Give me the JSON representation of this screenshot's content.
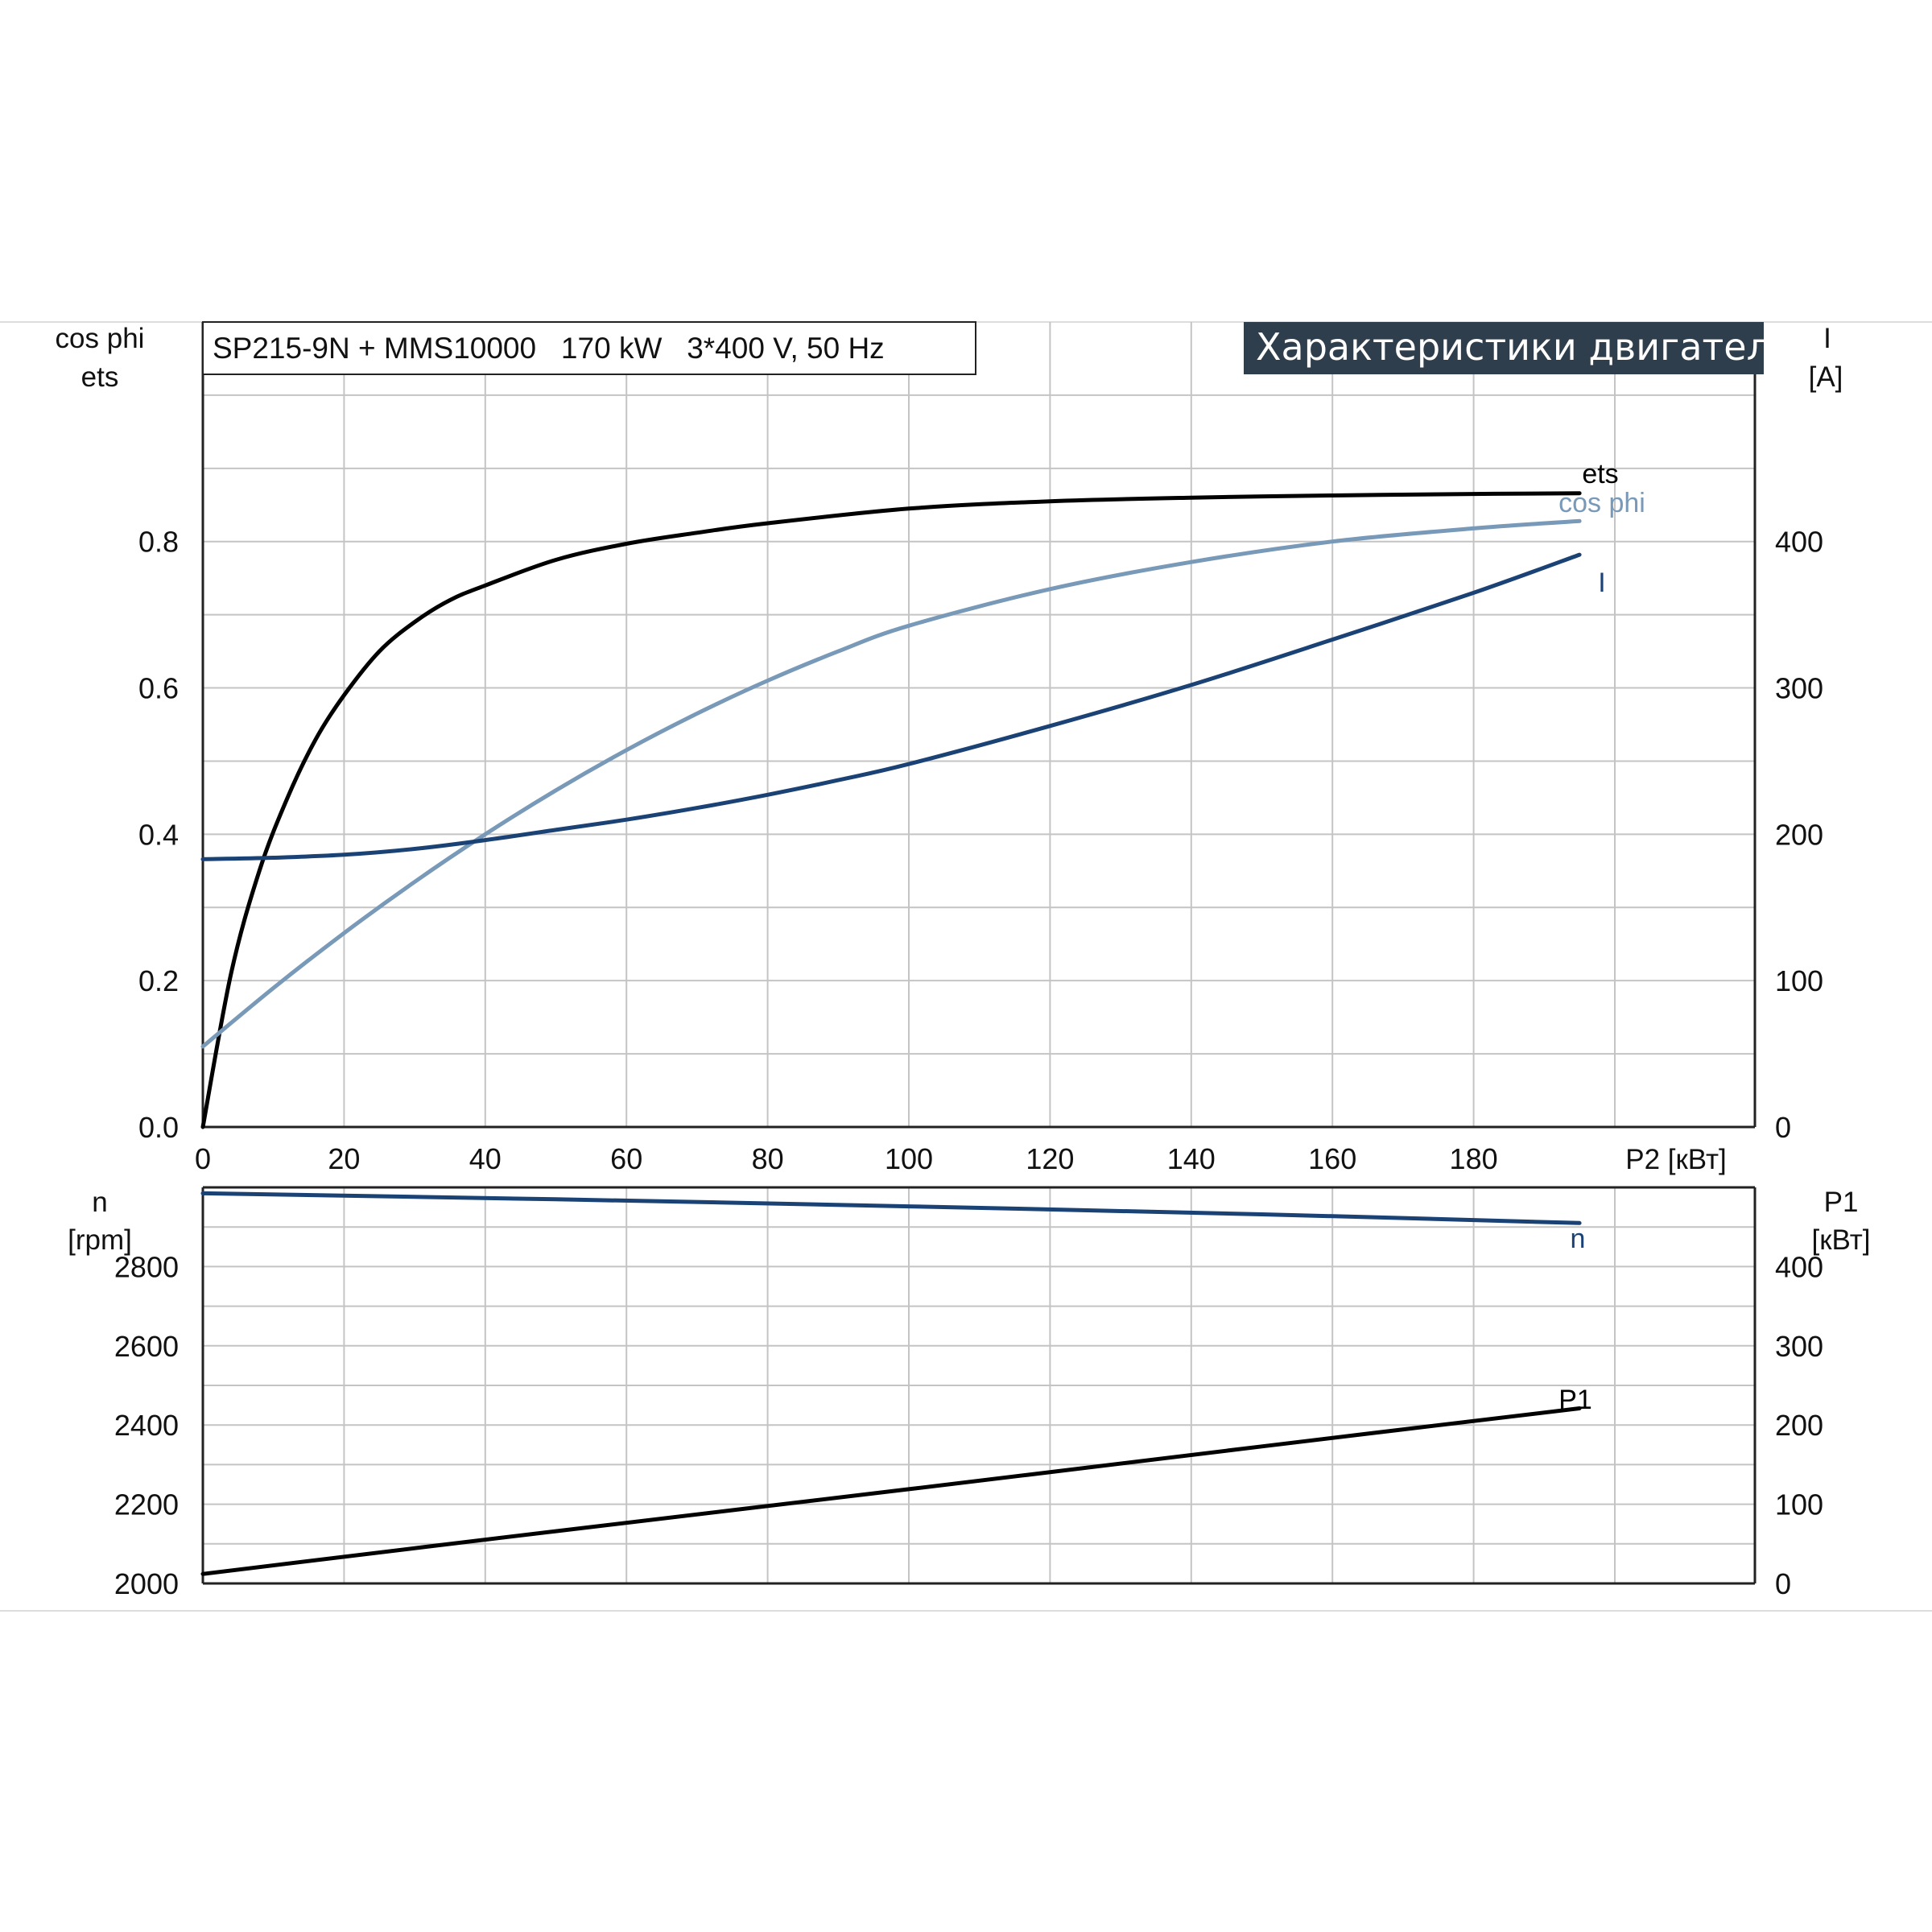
{
  "colors": {
    "grid": "#c4c4c4",
    "frame": "#222222",
    "title_bg": "#2f3e4c",
    "ets": "#000000",
    "cos_phi": "#7899b8",
    "I": "#1b4275",
    "n": "#1b4275",
    "P1": "#000000"
  },
  "header": {
    "model": "SP215-9N + MMS10000   170 kW   3*400 V, 50 Hz",
    "title": "Характеристики двигателя"
  },
  "chart_data": [
    {
      "type": "line",
      "panel": "upper",
      "x_label": "P2 [кВт]",
      "x_ticks": [
        "0",
        "20",
        "40",
        "60",
        "80",
        "100",
        "120",
        "140",
        "160",
        "180"
      ],
      "xlim": [
        0,
        220
      ],
      "left_axis": {
        "labels": [
          "cos phi",
          "ets"
        ],
        "ticks": [
          "0.0",
          "0.2",
          "0.4",
          "0.6",
          "0.8"
        ],
        "ylim": [
          0,
          1.1
        ]
      },
      "right_axis": {
        "labels": [
          "I",
          "[A]"
        ],
        "ticks": [
          "0",
          "100",
          "200",
          "300",
          "400"
        ],
        "ylim": [
          0,
          550
        ]
      },
      "grid": true,
      "series": [
        {
          "name": "ets",
          "axis": "left",
          "color_key": "ets",
          "x": [
            0,
            4,
            8,
            12,
            16,
            20,
            25,
            30,
            35,
            40,
            50,
            60,
            70,
            80,
            100,
            120,
            140,
            160,
            180,
            195
          ],
          "y": [
            0.0,
            0.21,
            0.35,
            0.45,
            0.53,
            0.59,
            0.65,
            0.69,
            0.72,
            0.74,
            0.775,
            0.797,
            0.812,
            0.825,
            0.845,
            0.855,
            0.86,
            0.863,
            0.865,
            0.866
          ]
        },
        {
          "name": "cos phi",
          "axis": "left",
          "color_key": "cos_phi",
          "x": [
            0,
            10,
            20,
            30,
            40,
            50,
            60,
            70,
            80,
            90,
            100,
            120,
            140,
            160,
            180,
            195
          ],
          "y": [
            0.11,
            0.19,
            0.265,
            0.335,
            0.4,
            0.46,
            0.515,
            0.565,
            0.61,
            0.65,
            0.685,
            0.735,
            0.772,
            0.8,
            0.818,
            0.828
          ]
        },
        {
          "name": "I",
          "axis": "right",
          "color_key": "I",
          "x": [
            0,
            10,
            20,
            30,
            40,
            50,
            60,
            70,
            80,
            90,
            100,
            120,
            140,
            160,
            180,
            195
          ],
          "y": [
            183,
            184,
            186,
            190,
            196,
            203,
            210,
            218,
            227,
            237,
            248,
            274,
            302,
            333,
            365,
            391
          ]
        }
      ]
    },
    {
      "type": "line",
      "panel": "lower",
      "x_label": "P2 [кВт]",
      "xlim": [
        0,
        220
      ],
      "left_axis": {
        "labels": [
          "n",
          "[rpm]"
        ],
        "ticks": [
          "2000",
          "2200",
          "2400",
          "2600",
          "2800"
        ],
        "ylim": [
          2000,
          3000
        ]
      },
      "right_axis": {
        "labels": [
          "P1",
          "[кВт]"
        ],
        "ticks": [
          "0",
          "100",
          "200",
          "300",
          "400"
        ],
        "ylim": [
          0,
          500
        ]
      },
      "grid": true,
      "series": [
        {
          "name": "n",
          "axis": "left",
          "color_key": "n",
          "x": [
            0,
            50,
            100,
            150,
            195
          ],
          "y": [
            2985,
            2970,
            2952,
            2932,
            2910
          ]
        },
        {
          "name": "P1",
          "axis": "right",
          "color_key": "P1",
          "x": [
            0,
            50,
            100,
            150,
            195
          ],
          "y": [
            12,
            66,
            119,
            173,
            221
          ]
        }
      ]
    }
  ]
}
